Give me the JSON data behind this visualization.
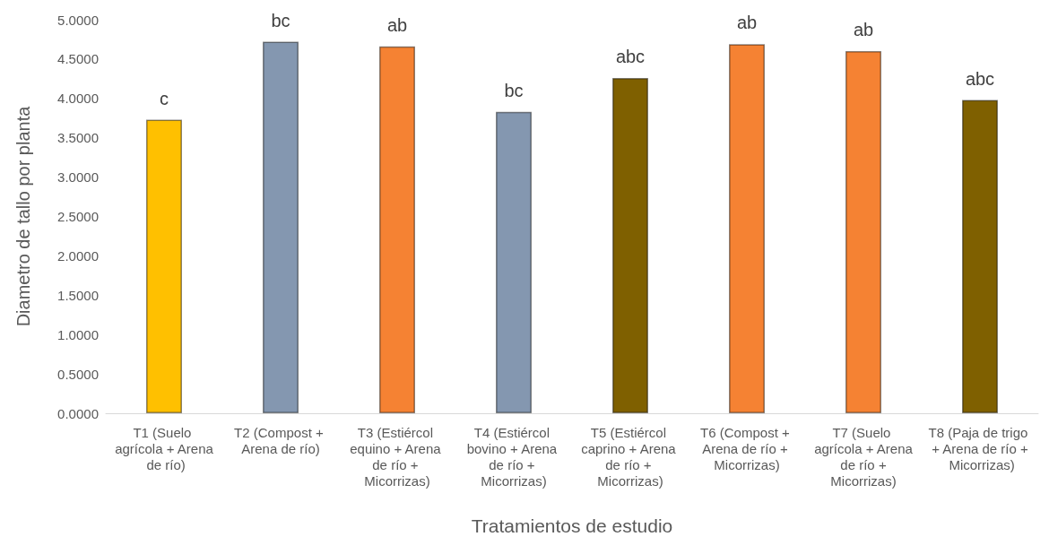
{
  "chart_data": {
    "type": "bar",
    "xlabel": "Tratamientos de estudio",
    "ylabel": "Diametro de tallo por planta",
    "categories": [
      "T1 (Suelo agrícola + Arena de río)",
      "T2 (Compost + Arena de río)",
      "T3 (Estiércol equino + Arena de río + Micorrizas)",
      "T4 (Estiércol bovino + Arena de río + Micorrizas)",
      "T5 (Estiércol caprino + Arena de río + Micorrizas)",
      "T6 (Compost + Arena de río + Micorrizas)",
      "T7 (Suelo agrícola + Arena de río + Micorrizas)",
      "T8 (Paja de trigo + Arena de río + Micorrizas)"
    ],
    "values": [
      3.73,
      4.72,
      4.66,
      3.83,
      4.26,
      4.69,
      4.6,
      3.98
    ],
    "colors": [
      "#ffc000",
      "#8497b0",
      "#f58233",
      "#8497b0",
      "#7f6000",
      "#f58233",
      "#f58233",
      "#7f6000"
    ],
    "ylim": [
      0,
      5
    ],
    "yticks": [
      {
        "value": 0,
        "label": "0.0000"
      },
      {
        "value": 0.5,
        "label": "0.5000"
      },
      {
        "value": 1,
        "label": "1.0000"
      },
      {
        "value": 1.5,
        "label": "1.5000"
      },
      {
        "value": 2,
        "label": "2.0000"
      },
      {
        "value": 2.5,
        "label": "2.5000"
      },
      {
        "value": 3,
        "label": "3.0000"
      },
      {
        "value": 3.5,
        "label": "3.5000"
      },
      {
        "value": 4,
        "label": "4.0000"
      },
      {
        "value": 4.5,
        "label": "4.5000"
      },
      {
        "value": 5,
        "label": "5.0000"
      }
    ],
    "annotations": [
      {
        "text": "c",
        "x": "T1 (Suelo agrícola + Arena de río)",
        "y": 3.73
      },
      {
        "text": "bc",
        "x": "T2 (Compost + Arena de río)",
        "y": 4.72
      },
      {
        "text": "ab",
        "x": "T3 (Estiércol equino + Arena de río + Micorrizas)",
        "y": 4.66
      },
      {
        "text": "bc",
        "x": "T4 (Estiércol bovino + Arena de río + Micorrizas)",
        "y": 3.83
      },
      {
        "text": "abc",
        "x": "T5 (Estiércol caprino + Arena de río + Micorrizas)",
        "y": 4.26
      },
      {
        "text": "ab",
        "x": "T6 (Compost + Arena de río + Micorrizas)",
        "y": 4.69
      },
      {
        "text": "ab",
        "x": "T7 (Suelo agrícola + Arena de río + Micorrizas)",
        "y": 4.6
      },
      {
        "text": "abc",
        "x": "T8 (Paja de trigo + Arena de río + Micorrizas)",
        "y": 3.98
      }
    ],
    "grid": false
  }
}
